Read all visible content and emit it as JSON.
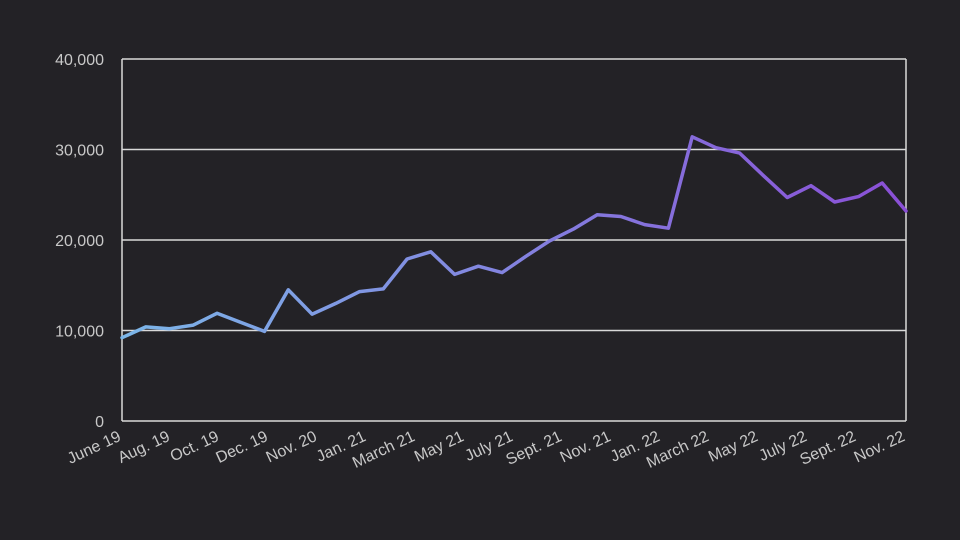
{
  "chart_data": {
    "type": "line",
    "title": "",
    "xlabel": "",
    "ylabel": "",
    "ylim": [
      0,
      40000
    ],
    "yticks": [
      0,
      10000,
      20000,
      30000,
      40000
    ],
    "ytick_labels": [
      "0",
      "10,000",
      "20,000",
      "30,000",
      "40,000"
    ],
    "grid": true,
    "legend": "none",
    "colors": {
      "background": "#232226",
      "grid": "#d9d9d9",
      "axis_text": "#c8c8c8",
      "line_start": "#7cb6e8",
      "line_end": "#8a4fd6"
    },
    "x_tick_labels": [
      "June 19",
      "Aug. 19",
      "Oct. 19",
      "Dec. 19",
      "Nov. 20",
      "Jan. 21",
      "March 21",
      "May 21",
      "July 21",
      "Sept. 21",
      "Nov. 21",
      "Jan. 22",
      "March 22",
      "May 22",
      "July 22",
      "Sept. 22",
      "Nov. 22"
    ],
    "series": [
      {
        "values": [
          9200,
          10400,
          10200,
          10600,
          11900,
          10900,
          9900,
          14500,
          11800,
          13000,
          14300,
          14600,
          17900,
          18700,
          16200,
          17100,
          16400,
          18200,
          19900,
          21200,
          22800,
          22600,
          21700,
          21300,
          31400,
          30200,
          29600,
          27100,
          24700,
          26000,
          24200,
          24800,
          26300,
          23200
        ]
      }
    ]
  }
}
